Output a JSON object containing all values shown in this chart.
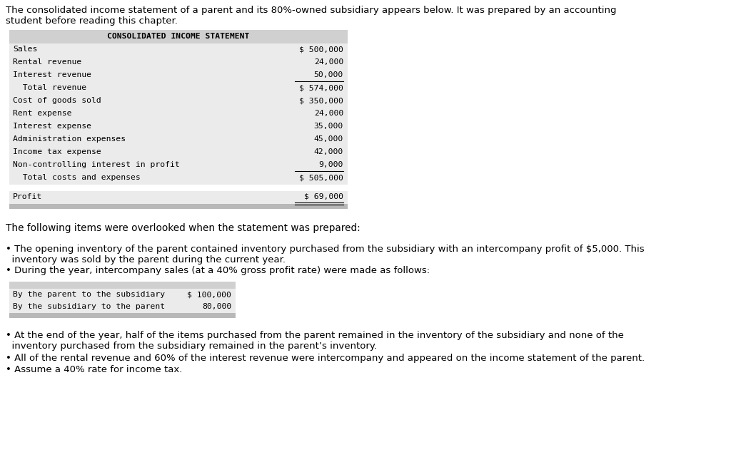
{
  "intro_line1": "The consolidated income statement of a parent and its 80%-owned subsidiary appears below. It was prepared by an accounting",
  "intro_line2": "student before reading this chapter.",
  "table1_title": "CONSOLIDATED INCOME STATEMENT",
  "table1_rows": [
    {
      "label": "Sales",
      "value": "$ 500,000",
      "indent": 0,
      "underline_above": false,
      "underline_below": false,
      "double_below": false
    },
    {
      "label": "Rental revenue",
      "value": "24,000",
      "indent": 0,
      "underline_above": false,
      "underline_below": false,
      "double_below": false
    },
    {
      "label": "Interest revenue",
      "value": "50,000",
      "indent": 0,
      "underline_above": false,
      "underline_below": true,
      "double_below": false
    },
    {
      "label": "  Total revenue",
      "value": "$ 574,000",
      "indent": 0,
      "underline_above": false,
      "underline_below": false,
      "double_below": false
    },
    {
      "label": "Cost of goods sold",
      "value": "$ 350,000",
      "indent": 0,
      "underline_above": false,
      "underline_below": false,
      "double_below": false
    },
    {
      "label": "Rent expense",
      "value": "24,000",
      "indent": 0,
      "underline_above": false,
      "underline_below": false,
      "double_below": false
    },
    {
      "label": "Interest expense",
      "value": "35,000",
      "indent": 0,
      "underline_above": false,
      "underline_below": false,
      "double_below": false
    },
    {
      "label": "Administration expenses",
      "value": "45,000",
      "indent": 0,
      "underline_above": false,
      "underline_below": false,
      "double_below": false
    },
    {
      "label": "Income tax expense",
      "value": "42,000",
      "indent": 0,
      "underline_above": false,
      "underline_below": false,
      "double_below": false
    },
    {
      "label": "Non-controlling interest in profit",
      "value": "9,000",
      "indent": 0,
      "underline_above": false,
      "underline_below": true,
      "double_below": false
    },
    {
      "label": "  Total costs and expenses",
      "value": "$ 505,000",
      "indent": 0,
      "underline_above": false,
      "underline_below": false,
      "double_below": false
    },
    {
      "label": "Profit",
      "value": "$ 69,000",
      "indent": 0,
      "underline_above": false,
      "underline_below": false,
      "double_below": true
    }
  ],
  "middle_text": "The following items were overlooked when the statement was prepared:",
  "bullet1a": "• The opening inventory of the parent contained inventory purchased from the subsidiary with an intercompany profit of $5,000. This",
  "bullet1b": "  inventory was sold by the parent during the current year.",
  "bullet2": "• During the year, intercompany sales (at a 40% gross profit rate) were made as follows:",
  "table2_rows": [
    {
      "label": "By the parent to the subsidiary",
      "value": "$ 100,000"
    },
    {
      "label": "By the subsidiary to the parent",
      "value": "80,000"
    }
  ],
  "bullet3a": "• At the end of the year, half of the items purchased from the parent remained in the inventory of the subsidiary and none of the",
  "bullet3b": "  inventory purchased from the subsidiary remained in the parent’s inventory.",
  "bullet4": "• All of the rental revenue and 60% of the interest revenue were intercompany and appeared on the income statement of the parent.",
  "bullet5": "• Assume a 40% rate for income tax.",
  "bg_color": "#ffffff",
  "header_bg": "#d0d0d0",
  "row_bg": "#ebebeb",
  "footer_bg": "#b8b8b8"
}
